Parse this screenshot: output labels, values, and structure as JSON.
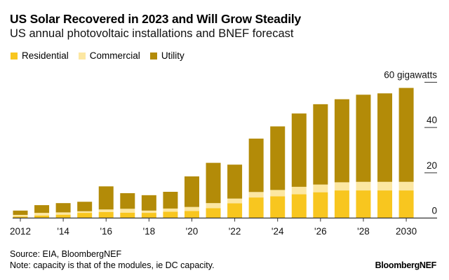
{
  "chart_data": {
    "type": "bar",
    "stacked": true,
    "title": "US Solar Recovered in 2023 and Will Grow Steadily",
    "subtitle": "US annual photovoltaic installations and BNEF forecast",
    "ylabel": "",
    "yunit_label": "60 gigawatts",
    "ylim": [
      0,
      60
    ],
    "yticks": [
      "0",
      "20",
      "40",
      "60 gigawatts"
    ],
    "ytick_values": [
      0,
      20,
      40,
      60
    ],
    "y_axis_position": "right",
    "legend_position": "top-left",
    "grid": false,
    "categories": [
      "2012",
      "2013",
      "2014",
      "2015",
      "2016",
      "2017",
      "2018",
      "2019",
      "2020",
      "2021",
      "2022",
      "2023",
      "2024",
      "2025",
      "2026",
      "2027",
      "2028",
      "2029",
      "2030"
    ],
    "xtick_labels": [
      "2012",
      "",
      "'14",
      "",
      "'16",
      "",
      "'18",
      "",
      "'20",
      "",
      "'22",
      "",
      "'24",
      "",
      "'26",
      "",
      "'28",
      "",
      "2030"
    ],
    "series": [
      {
        "name": "Residential",
        "color": "#F8C61F",
        "values": [
          0.7,
          1.1,
          1.5,
          2.3,
          2.7,
          2.4,
          2.3,
          2.8,
          3.1,
          4.4,
          6.5,
          9.1,
          9.6,
          10.5,
          11.4,
          12.2,
          12.2,
          12.2,
          12.2
        ]
      },
      {
        "name": "Commercial",
        "color": "#FCE7A2",
        "values": [
          0.7,
          1.2,
          1.0,
          0.7,
          1.1,
          1.7,
          1.0,
          1.4,
          1.8,
          2.2,
          2.1,
          2.4,
          2.8,
          3.3,
          3.4,
          3.6,
          3.8,
          3.8,
          3.8
        ]
      },
      {
        "name": "Utility",
        "color": "#B38B08",
        "values": [
          1.9,
          3.4,
          4.1,
          4.2,
          10.2,
          6.9,
          6.8,
          7.4,
          13.5,
          17.8,
          15.0,
          23.6,
          28.1,
          32.4,
          35.5,
          36.7,
          38.5,
          39.1,
          41.5
        ]
      }
    ]
  },
  "footer": {
    "source": "Source: EIA, BloombergNEF",
    "note": "Note: capacity is that of the modules, ie DC capacity.",
    "brand": "BloombergNEF"
  }
}
